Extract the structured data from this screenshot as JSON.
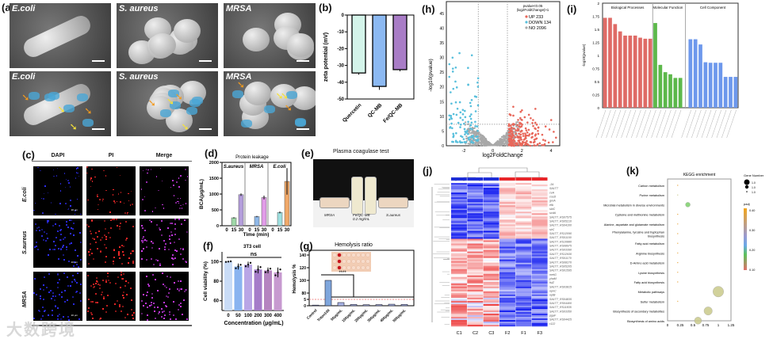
{
  "panel_labels": {
    "a": "(a)",
    "b": "(b)",
    "c": "(c)",
    "d": "(d)",
    "e": "(e)",
    "f": "(f)",
    "g": "(g)",
    "h": "(h)",
    "i": "(i)",
    "j": "(j)",
    "k": "(k)"
  },
  "sem": {
    "row1": [
      "E.coli",
      "S. aureus",
      "MRSA"
    ],
    "row2": [
      "E.coli",
      "S. aureus",
      "MRSA"
    ]
  },
  "zeta": {
    "ylabel": "zeta potential (mV)",
    "categories": [
      "Quercetin",
      "QC-MB",
      "Fe/QC-MB"
    ],
    "values": [
      -34.5,
      -42.5,
      -32.5
    ],
    "errors": [
      1,
      2,
      1
    ],
    "colors": [
      "#d4f4ea",
      "#8cb9f2",
      "#a87cc6"
    ],
    "ylim": [
      -50,
      0
    ],
    "ticks": [
      0,
      -10,
      -20,
      -30,
      -40,
      -50
    ]
  },
  "fluor": {
    "columns": [
      "DAPI",
      "PI",
      "Merge"
    ],
    "rows": [
      "E.coli",
      "S.aureus",
      "MRSA"
    ],
    "scale": "20 μm"
  },
  "leakage": {
    "title": "Protein leakage",
    "ylabel": "BCA(μg/mL)",
    "xlabel": "Time (min)",
    "times": [
      "0",
      "15",
      "30"
    ],
    "ticks": [
      0,
      500,
      1000,
      1500,
      2000
    ],
    "ylim": [
      0,
      2000
    ],
    "groups": [
      {
        "name": "S.aureus",
        "values": [
          0,
          250,
          980
        ],
        "errors": [
          0,
          20,
          40
        ],
        "colors": [
          "#cccccc",
          "#9fd8a8",
          "#b39ddb"
        ]
      },
      {
        "name": "MRSA",
        "values": [
          0,
          290,
          890
        ],
        "errors": [
          0,
          20,
          60
        ],
        "colors": [
          "#cccccc",
          "#8fb8e8",
          "#e19be8"
        ]
      },
      {
        "name": "E.coli",
        "values": [
          0,
          420,
          1400
        ],
        "errors": [
          0,
          30,
          420
        ],
        "colors": [
          "#cccccc",
          "#9ee0e0",
          "#f0a868"
        ]
      }
    ]
  },
  "coagulase": {
    "title": "Plasma coagulase test",
    "labels": [
      "MRSA",
      "Fe/QC-MB\n0.2 mg/mL",
      "S.aureus"
    ]
  },
  "viability": {
    "title": "3T3 cell",
    "sig": "ns",
    "ylabel": "Cell viability (%)",
    "xlabel": "Concentration (μg/mL)",
    "categories": [
      "0",
      "50",
      "100",
      "200",
      "300",
      "400"
    ],
    "values": [
      100,
      95,
      97,
      92,
      91,
      89
    ],
    "errors": [
      0.5,
      3,
      3,
      4,
      3,
      5
    ],
    "colors": [
      "#c9dcf7",
      "#8ab4f0",
      "#b9a6e6",
      "#a57cc9",
      "#b585c0",
      "#c79ad0"
    ],
    "ylim": [
      50,
      110
    ],
    "ticks": [
      60,
      80,
      100
    ]
  },
  "hemolysis": {
    "title": "Hemolysis ratio",
    "ylabel": "Hemolysis %",
    "sig": "****",
    "categories": [
      "Control",
      "Triton100",
      "50μg/mL",
      "100μg/mL",
      "200μg/mL",
      "300μg/mL",
      "400μg/mL",
      "500μg/mL"
    ],
    "values": [
      0.5,
      100,
      2.5,
      1,
      0.8,
      0.9,
      1.2,
      1
    ],
    "ticks_low": [
      0,
      5
    ],
    "ticks_high": [
      80,
      100,
      120,
      140
    ],
    "threshold": 5
  },
  "volcano": {
    "xlabel": "log2FoldChange",
    "ylabel": "-log10(pvalue)",
    "legend_title": "pvalue<0.05\n|log2FoldChange|>1",
    "legend": [
      {
        "label": "UP 233",
        "color": "#e8675a"
      },
      {
        "label": "DOWN 134",
        "color": "#58bfdc"
      },
      {
        "label": "NO 2096",
        "color": "#a8a8a8"
      }
    ],
    "xticks": [
      -2,
      0,
      2,
      4
    ],
    "yticks": [
      0,
      5,
      10,
      15,
      20,
      25,
      30,
      35,
      40,
      45
    ],
    "xlim": [
      -3.2,
      4.6
    ],
    "ylim": [
      0,
      49
    ]
  },
  "go": {
    "ylabel": "-log10(pvalue)",
    "yticks": [
      "0",
      "0.25",
      "0.5",
      "0.75",
      "1",
      "1.25",
      "1.5",
      "1.75",
      "2"
    ],
    "ylim": [
      0,
      2
    ],
    "groups": [
      {
        "name": "Biological Processes",
        "color": "#df6b66",
        "values": [
          1.72,
          1.72,
          1.6,
          1.46,
          1.38,
          1.38,
          1.38,
          1.34,
          1.32,
          1.32
        ]
      },
      {
        "name": "Molecular Function",
        "color": "#5cb84a",
        "values": [
          1.62,
          0.82,
          0.68,
          0.64,
          0.57,
          0.57
        ]
      },
      {
        "name": "Cell Component",
        "color": "#6d98ec",
        "values": [
          1.31,
          1.31,
          1.21,
          0.87,
          0.86,
          0.86,
          0.86,
          0.59,
          0.59,
          0.59
        ]
      }
    ]
  },
  "heatmap": {
    "columns": [
      "C1",
      "C2",
      "C3",
      "F2",
      "F1",
      "F3"
    ],
    "groups": [
      "#1f2fd6",
      "#1f2fd6",
      "#1f2fd6",
      "#e8262a",
      "#e8262a",
      "#e8262a"
    ],
    "genes": [
      "-34",
      "SA1T7",
      "cvA",
      "cosD",
      "groA",
      "efb",
      "sbiC",
      "scdA",
      "SA1T7_RS07575",
      "SA1T7_RS05210",
      "SA1T7_RS04100",
      "sirC",
      "SA1T7_RS12090",
      "SA1T7_RS01100",
      "SA1T7_RS10880",
      "SA1T7_RS08975",
      "SA1T7_RS03390",
      "SA1T7_RS12930",
      "SA1T7_RS01170",
      "SA1T7_RS08270",
      "SA1T7_RS05205",
      "SA1T7_RS01595",
      "metG",
      "yhaM",
      "fsiZ",
      "SA1T7_RS03815",
      "opnC",
      "optB",
      "SA1T7_RS04835",
      "SA1T7_RS04400",
      "SA1T7_RS11835",
      "SA1T7_RS03350",
      "pgaF",
      "SA1T7_RS04425",
      "r122"
    ]
  },
  "kegg": {
    "title": "KEGG enrichment",
    "xticks": [
      "0",
      "0.25",
      "0.5",
      "0.75",
      "1",
      "1.25"
    ],
    "xlim": [
      0,
      1.25
    ],
    "terms": [
      {
        "name": "Carbon metabolism",
        "x": 0.2,
        "size": 1,
        "padj": 0.38
      },
      {
        "name": "Purine metabolism",
        "x": 0.2,
        "size": 1,
        "padj": 0.28
      },
      {
        "name": "Microbial metabolism in diverse environments",
        "x": 0.4,
        "size": 4,
        "padj": 0.2
      },
      {
        "name": "Cysteine and methionine metabolism",
        "x": 0.2,
        "size": 1,
        "padj": 0.38
      },
      {
        "name": "Alanine, aspartate and glutamate metabolism",
        "x": 0.2,
        "size": 1,
        "padj": 0.38
      },
      {
        "name": "Phenylalanine, tyrosine and tryptophan biosynthesis",
        "x": 0.2,
        "size": 1,
        "padj": 0.38
      },
      {
        "name": "Fatty acid metabolism",
        "x": 0.2,
        "size": 1,
        "padj": 0.38
      },
      {
        "name": "Arginine biosynthesis",
        "x": 0.2,
        "size": 1,
        "padj": 0.38
      },
      {
        "name": "D-Amino acid metabolism",
        "x": 0.2,
        "size": 1,
        "padj": 0.38
      },
      {
        "name": "Lysine biosynthesis",
        "x": 0.2,
        "size": 1,
        "padj": 0.38
      },
      {
        "name": "Fatty acid biosynthesis",
        "x": 0.2,
        "size": 1,
        "padj": 0.38
      },
      {
        "name": "Metabolic pathways",
        "x": 1.0,
        "size": 9,
        "padj": 0.27
      },
      {
        "name": "Sulfur metabolism",
        "x": 0.2,
        "size": 1,
        "padj": 0.38
      },
      {
        "name": "Biosynthesis of secondary metabolites",
        "x": 0.8,
        "size": 7,
        "padj": 0.27
      },
      {
        "name": "Biosynthesis of amino acids",
        "x": 0.6,
        "size": 6,
        "padj": 0.27
      }
    ],
    "size_legend_title": "Gene Number",
    "size_legend": [
      "1.0",
      "1.0",
      "1.0"
    ],
    "color_legend_title": "padj",
    "color_legend": [
      "0.40",
      "0.30",
      "0.20",
      "0.10"
    ]
  },
  "watermark": "大数跨境"
}
